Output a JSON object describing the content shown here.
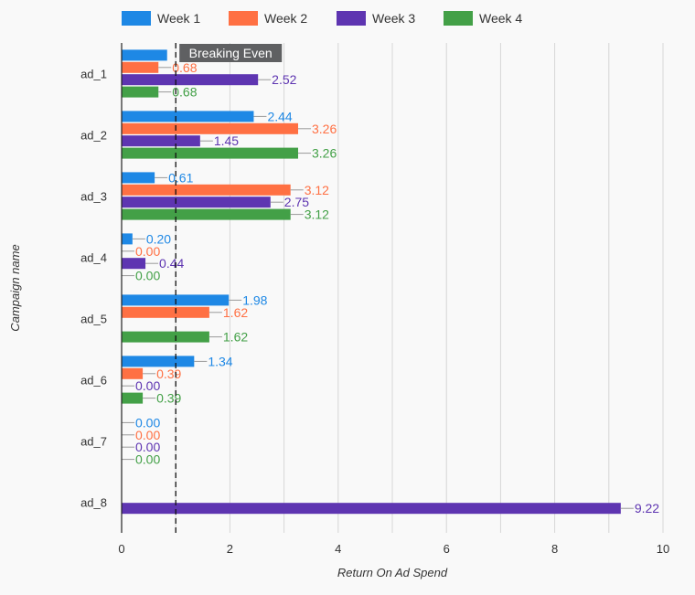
{
  "chart_data": {
    "type": "bar",
    "orientation": "horizontal",
    "categories": [
      "ad_1",
      "ad_2",
      "ad_3",
      "ad_4",
      "ad_5",
      "ad_6",
      "ad_7",
      "ad_8"
    ],
    "series": [
      {
        "name": "Week 1",
        "color": "#1e88e5",
        "values": [
          0.84,
          2.44,
          0.61,
          0.2,
          1.98,
          1.34,
          0.0,
          null
        ],
        "labels": [
          "",
          "2.44",
          "0.61",
          "0.20",
          "1.98",
          "1.34",
          "0.00",
          ""
        ]
      },
      {
        "name": "Week 2",
        "color": "#ff7043",
        "values": [
          0.68,
          3.26,
          3.12,
          0.0,
          1.62,
          0.39,
          0.0,
          null
        ],
        "labels": [
          "0.68",
          "3.26",
          "3.12",
          "0.00",
          "1.62",
          "0.39",
          "0.00",
          ""
        ]
      },
      {
        "name": "Week 3",
        "color": "#5e35b1",
        "values": [
          2.52,
          1.45,
          2.75,
          0.44,
          null,
          0.0,
          0.0,
          9.22
        ],
        "labels": [
          "2.52",
          "1.45",
          "2.75",
          "0.44",
          "",
          "0.00",
          "0.00",
          "9.22"
        ]
      },
      {
        "name": "Week 4",
        "color": "#43a047",
        "values": [
          0.68,
          3.26,
          3.12,
          0.0,
          1.62,
          0.39,
          0.0,
          null
        ],
        "labels": [
          "0.68",
          "3.26",
          "3.12",
          "0.00",
          "1.62",
          "0.39",
          "0.00",
          ""
        ]
      }
    ],
    "xlabel": "Return On Ad Spend",
    "ylabel": "Campaign name",
    "xlim": [
      0,
      10
    ],
    "xticks": [
      "0",
      "2",
      "4",
      "6",
      "8",
      "10"
    ],
    "grid": true,
    "legend_placement": "top-left",
    "reference_line": {
      "value": 1,
      "label": "Breaking Even",
      "style": "dashed"
    }
  }
}
